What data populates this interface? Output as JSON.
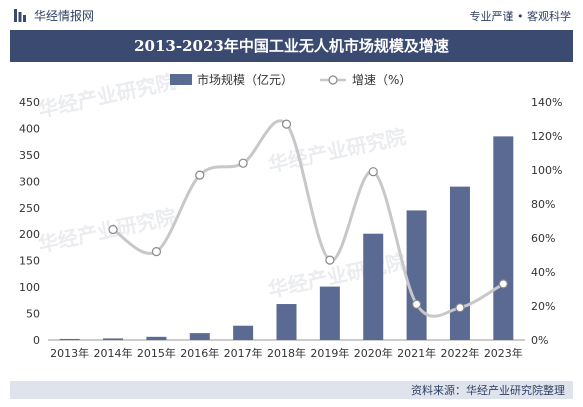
{
  "header": {
    "brand": "华经情报网",
    "slogan": "专业严谨 • 客观科学"
  },
  "title": "2013-2023年中国工业无人机市场规模及增速",
  "source": "资料来源：华经产业研究院整理",
  "watermark": "华经产业研究院",
  "colors": {
    "bar": "#5b6a92",
    "line": "#c8c8c8",
    "title_bg": "#3b4a71"
  },
  "chart_data": {
    "type": "bar",
    "title": "2013-2023年中国工业无人机市场规模及增速",
    "categories": [
      "2013年",
      "2014年",
      "2015年",
      "2016年",
      "2017年",
      "2018年",
      "2019年",
      "2020年",
      "2021年",
      "2022年",
      "2023年"
    ],
    "series": [
      {
        "name": "市场规模（亿元）",
        "type": "bar",
        "axis": "left",
        "values": [
          2,
          3,
          6,
          13,
          27,
          68,
          101,
          201,
          245,
          290,
          385
        ]
      },
      {
        "name": "增速（%）",
        "type": "line",
        "axis": "right",
        "values": [
          null,
          65,
          52,
          97,
          104,
          127,
          47,
          99,
          21,
          19,
          33
        ]
      }
    ],
    "y_left": {
      "min": 0,
      "max": 450,
      "ticks": [
        "0",
        "50",
        "100",
        "150",
        "200",
        "250",
        "300",
        "350",
        "400",
        "450"
      ]
    },
    "y_right": {
      "min": 0,
      "max": 140,
      "ticks": [
        "0%",
        "20%",
        "40%",
        "60%",
        "80%",
        "100%",
        "120%",
        "140%"
      ]
    },
    "legend_position": "top-center",
    "grid": false
  }
}
